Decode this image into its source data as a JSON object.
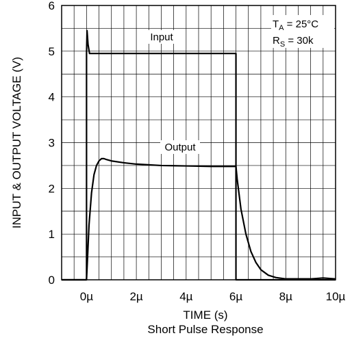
{
  "chart_data": {
    "type": "line",
    "title": "Short Pulse Response",
    "xlabel": "TIME (s)",
    "ylabel": "INPUT & OUTPUT VOLTAGE (V)",
    "xlim": [
      -1,
      10
    ],
    "ylim": [
      0,
      6
    ],
    "x_unit": "µs",
    "grid": true,
    "x_ticks": [
      0,
      2,
      4,
      6,
      8,
      10
    ],
    "x_tick_labels": [
      "0µ",
      "2µ",
      "4µ",
      "6µ",
      "8µ",
      "10µ"
    ],
    "y_ticks": [
      0,
      1,
      2,
      3,
      4,
      5,
      6
    ],
    "y_tick_labels": [
      "0",
      "1",
      "2",
      "3",
      "4",
      "5",
      "6"
    ],
    "series": [
      {
        "name": "Input",
        "x": [
          -1,
          0,
          0,
          0.02,
          0.06,
          0.12,
          6.0,
          6.0,
          10
        ],
        "y": [
          0,
          0,
          4.95,
          5.45,
          5.15,
          4.95,
          4.95,
          0,
          0
        ]
      },
      {
        "name": "Output",
        "x": [
          -1,
          0,
          0.05,
          0.1,
          0.2,
          0.3,
          0.4,
          0.5,
          0.6,
          0.7,
          0.8,
          1.0,
          1.5,
          2.0,
          3.0,
          4.0,
          5.0,
          6.0,
          6.05,
          6.2,
          6.4,
          6.6,
          6.8,
          7.0,
          7.3,
          7.6,
          8.0,
          8.5,
          9.0,
          9.5,
          10
        ],
        "y": [
          0,
          0,
          0.6,
          1.2,
          1.9,
          2.3,
          2.5,
          2.6,
          2.65,
          2.65,
          2.63,
          2.6,
          2.56,
          2.53,
          2.5,
          2.49,
          2.48,
          2.48,
          2.2,
          1.55,
          1.0,
          0.62,
          0.38,
          0.22,
          0.1,
          0.05,
          0.02,
          0.02,
          0.02,
          0.04,
          0.02
        ]
      }
    ],
    "annotations": {
      "input_label": "Input",
      "output_label": "Output",
      "cond1_main": "T",
      "cond1_sub": "A",
      "cond1_rest": " = 25°C",
      "cond2_main": "R",
      "cond2_sub": "S",
      "cond2_rest": " = 30k"
    }
  }
}
